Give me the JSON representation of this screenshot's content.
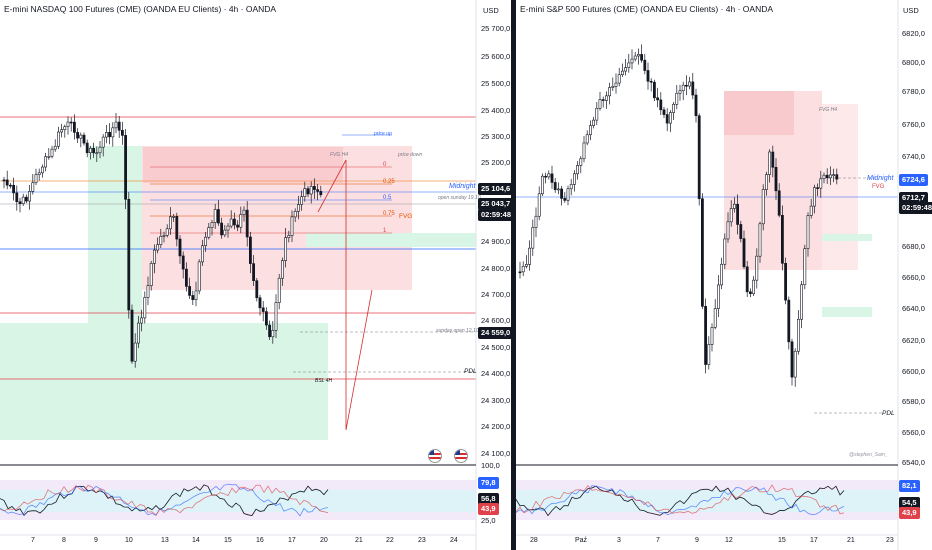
{
  "left": {
    "title": "E-mini NASDAQ 100 Futures (CME) (OANDA EU Clients) · 4h · OANDA",
    "currency": "USD",
    "price_scale": [
      "25 700,0",
      "25 600,0",
      "25 500,0",
      "25 400,0",
      "25 300,0",
      "25 200,0",
      "24 900,0",
      "24 800,0",
      "24 700,0",
      "24 600,0",
      "24 500,0",
      "24 400,0",
      "24 300,0",
      "24 200,0",
      "24 100,0"
    ],
    "last_price": "25 104,6",
    "current_price": "25 043,7",
    "countdown": "02:59:48",
    "marked_price": "24 559,0",
    "annotations": {
      "midnight": "Midnight",
      "fvg": "FVG",
      "pdl": "PDL",
      "fib_0": "0",
      "fib_025": "0.25",
      "fib_05": "0.5",
      "fib_075": "0.75",
      "fib_1": "1",
      "fvg_h4": "FVG H4",
      "price_up": "price up",
      "price_down": "price down",
      "open_sunday": "open sunday 19.10",
      "sunday_open": "sunday open 12.10",
      "bsl": "BSL 4H"
    },
    "dates": [
      "7",
      "8",
      "9",
      "10",
      "13",
      "14",
      "15",
      "16",
      "17",
      "20",
      "21",
      "22",
      "23",
      "24"
    ],
    "rsi": {
      "upper": "79,8",
      "mid": "56,8",
      "lower": "43,9",
      "scale": [
        "100,0",
        "25,0"
      ]
    },
    "colors": {
      "up_box": "#d8f5e6",
      "down_box": "#fbd9dc",
      "midnight_line": "#2962ff",
      "fib": "#e65100"
    }
  },
  "right": {
    "title": "E-mini S&P 500 Futures (CME) (OANDA EU Clients) · 4h · OANDA",
    "currency": "USD",
    "price_scale": [
      "6820,0",
      "6800,0",
      "6780,0",
      "6760,0",
      "6740,0",
      "6680,0",
      "6660,0",
      "6640,0",
      "6620,0",
      "6600,0",
      "6580,0",
      "6560,0",
      "6540,0"
    ],
    "last_price": "6724,6",
    "current_price": "6712,7",
    "countdown": "02:59:48",
    "annotations": {
      "midnight": "Midnight",
      "fvg": "FVG",
      "pdl": "PDL",
      "fvg_h4": "FVG H4",
      "watermark": "@stephen_Sam_"
    },
    "dates": [
      "28",
      "Paź",
      "3",
      "7",
      "9",
      "12",
      "15",
      "17",
      "21",
      "23"
    ],
    "rsi": {
      "upper": "82,1",
      "mid": "54,5",
      "lower": "43,9"
    }
  }
}
